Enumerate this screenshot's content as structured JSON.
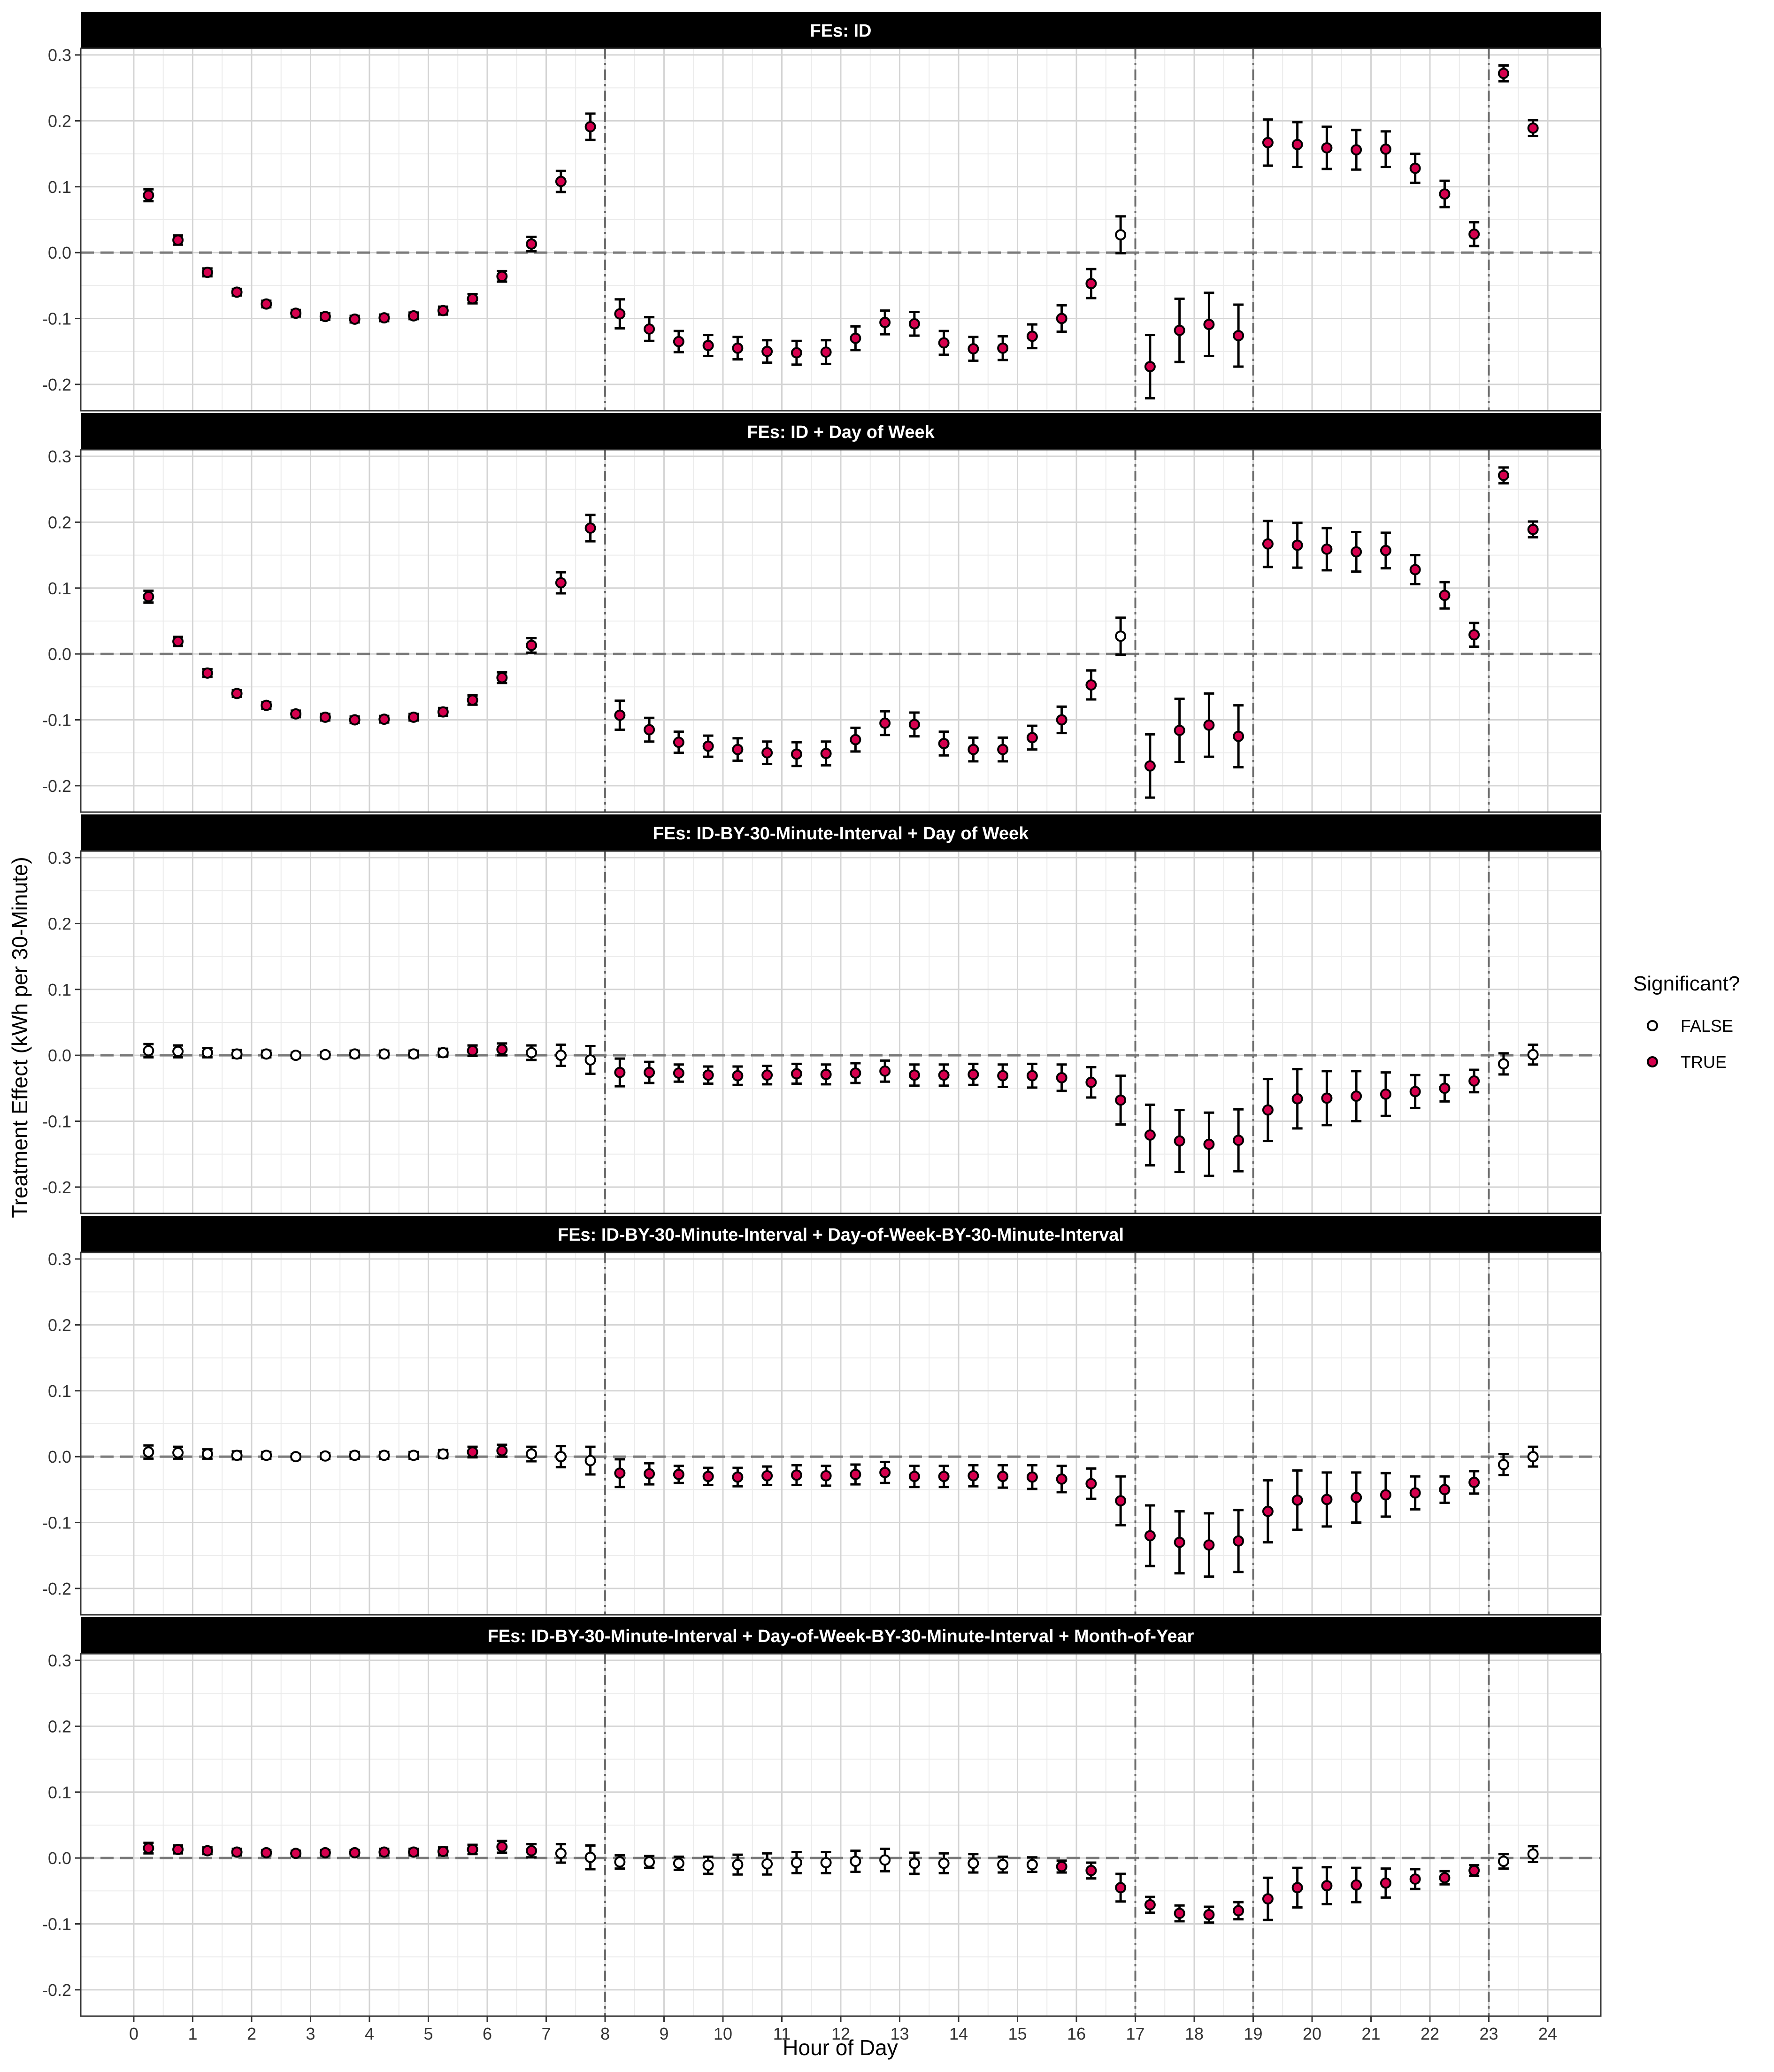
{
  "chart_data": {
    "type": "scatter",
    "ylabel": "Treatment Effect  (kWh per 30-Minute)",
    "xlabel": "Hour of Day",
    "xlim": [
      -0.9,
      24.9
    ],
    "ylim": [
      -0.24,
      0.31
    ],
    "x_ticks": [
      0,
      1,
      2,
      3,
      4,
      5,
      6,
      7,
      8,
      9,
      10,
      11,
      12,
      13,
      14,
      15,
      16,
      17,
      18,
      19,
      20,
      21,
      22,
      23,
      24
    ],
    "y_ticks": [
      -0.2,
      -0.1,
      0.0,
      0.1,
      0.2,
      0.3
    ],
    "y_tick_labels": [
      "-0.2",
      "-0.1",
      "0.0",
      "0.1",
      "0.2",
      "0.3"
    ],
    "grid": true,
    "vlines": [
      8,
      17,
      19,
      23
    ],
    "hline": 0,
    "legend": {
      "title": "Significant?",
      "placement": "right",
      "entries": [
        {
          "label": "FALSE",
          "fill": "#ffffff"
        },
        {
          "label": "TRUE",
          "fill": "#d6004e"
        }
      ]
    },
    "x": [
      0.25,
      0.75,
      1.25,
      1.75,
      2.25,
      2.75,
      3.25,
      3.75,
      4.25,
      4.75,
      5.25,
      5.75,
      6.25,
      6.75,
      7.25,
      7.75,
      8.25,
      8.75,
      9.25,
      9.75,
      10.25,
      10.75,
      11.25,
      11.75,
      12.25,
      12.75,
      13.25,
      13.75,
      14.25,
      14.75,
      15.25,
      15.75,
      16.25,
      16.75,
      17.25,
      17.75,
      18.25,
      18.75,
      19.25,
      19.75,
      20.25,
      20.75,
      21.25,
      21.75,
      22.25,
      22.75,
      23.25,
      23.75
    ],
    "panels": [
      {
        "title": "FEs: ID",
        "estimate": [
          0.087,
          0.019,
          -0.03,
          -0.06,
          -0.078,
          -0.092,
          -0.097,
          -0.101,
          -0.099,
          -0.096,
          -0.088,
          -0.07,
          -0.036,
          0.013,
          0.108,
          0.191,
          -0.093,
          -0.116,
          -0.135,
          -0.141,
          -0.145,
          -0.15,
          -0.152,
          -0.151,
          -0.13,
          -0.106,
          -0.108,
          -0.137,
          -0.146,
          -0.145,
          -0.127,
          -0.1,
          -0.047,
          0.027,
          -0.173,
          -0.118,
          -0.109,
          -0.126,
          0.167,
          0.164,
          0.159,
          0.156,
          0.157,
          0.128,
          0.089,
          0.028,
          0.272,
          0.189
        ],
        "error": [
          0.009,
          0.007,
          0.006,
          0.005,
          0.005,
          0.005,
          0.005,
          0.005,
          0.005,
          0.005,
          0.006,
          0.007,
          0.008,
          0.011,
          0.016,
          0.02,
          0.022,
          0.018,
          0.016,
          0.016,
          0.017,
          0.017,
          0.018,
          0.018,
          0.018,
          0.018,
          0.018,
          0.018,
          0.018,
          0.018,
          0.018,
          0.02,
          0.022,
          0.028,
          0.048,
          0.048,
          0.048,
          0.047,
          0.035,
          0.034,
          0.032,
          0.03,
          0.027,
          0.022,
          0.02,
          0.018,
          0.012,
          0.012
        ],
        "significant": [
          true,
          true,
          true,
          true,
          true,
          true,
          true,
          true,
          true,
          true,
          true,
          true,
          true,
          true,
          true,
          true,
          true,
          true,
          true,
          true,
          true,
          true,
          true,
          true,
          true,
          true,
          true,
          true,
          true,
          true,
          true,
          true,
          true,
          false,
          true,
          true,
          true,
          true,
          true,
          true,
          true,
          true,
          true,
          true,
          true,
          true,
          true,
          true
        ]
      },
      {
        "title": "FEs: ID + Day of Week",
        "estimate": [
          0.087,
          0.019,
          -0.029,
          -0.06,
          -0.078,
          -0.091,
          -0.096,
          -0.1,
          -0.099,
          -0.096,
          -0.088,
          -0.07,
          -0.036,
          0.013,
          0.108,
          0.191,
          -0.093,
          -0.115,
          -0.134,
          -0.14,
          -0.145,
          -0.15,
          -0.152,
          -0.151,
          -0.13,
          -0.105,
          -0.107,
          -0.136,
          -0.145,
          -0.145,
          -0.127,
          -0.1,
          -0.047,
          0.027,
          -0.17,
          -0.116,
          -0.108,
          -0.125,
          0.167,
          0.165,
          0.159,
          0.155,
          0.157,
          0.128,
          0.089,
          0.029,
          0.271,
          0.189
        ],
        "error": [
          0.009,
          0.007,
          0.006,
          0.005,
          0.005,
          0.005,
          0.005,
          0.005,
          0.005,
          0.005,
          0.006,
          0.007,
          0.008,
          0.011,
          0.016,
          0.02,
          0.022,
          0.018,
          0.016,
          0.016,
          0.017,
          0.017,
          0.018,
          0.018,
          0.018,
          0.018,
          0.018,
          0.018,
          0.018,
          0.018,
          0.018,
          0.02,
          0.022,
          0.028,
          0.048,
          0.048,
          0.048,
          0.047,
          0.035,
          0.034,
          0.032,
          0.03,
          0.027,
          0.022,
          0.02,
          0.018,
          0.012,
          0.012
        ],
        "significant": [
          true,
          true,
          true,
          true,
          true,
          true,
          true,
          true,
          true,
          true,
          true,
          true,
          true,
          true,
          true,
          true,
          true,
          true,
          true,
          true,
          true,
          true,
          true,
          true,
          true,
          true,
          true,
          true,
          true,
          true,
          true,
          true,
          true,
          false,
          true,
          true,
          true,
          true,
          true,
          true,
          true,
          true,
          true,
          true,
          true,
          true,
          true,
          true
        ]
      },
      {
        "title": "FEs: ID-BY-30-Minute-Interval + Day of Week",
        "estimate": [
          0.007,
          0.006,
          0.004,
          0.002,
          0.002,
          0.0,
          0.001,
          0.002,
          0.002,
          0.002,
          0.004,
          0.007,
          0.009,
          0.004,
          0.0,
          -0.007,
          -0.026,
          -0.026,
          -0.027,
          -0.03,
          -0.031,
          -0.03,
          -0.028,
          -0.029,
          -0.027,
          -0.024,
          -0.03,
          -0.03,
          -0.029,
          -0.031,
          -0.031,
          -0.034,
          -0.041,
          -0.068,
          -0.121,
          -0.13,
          -0.135,
          -0.129,
          -0.083,
          -0.066,
          -0.065,
          -0.062,
          -0.059,
          -0.055,
          -0.05,
          -0.039,
          -0.013,
          0.001
        ],
        "error": [
          0.01,
          0.009,
          0.007,
          0.006,
          0.005,
          0.004,
          0.004,
          0.005,
          0.005,
          0.005,
          0.006,
          0.008,
          0.009,
          0.011,
          0.016,
          0.021,
          0.021,
          0.016,
          0.013,
          0.013,
          0.014,
          0.014,
          0.015,
          0.015,
          0.015,
          0.016,
          0.016,
          0.016,
          0.016,
          0.017,
          0.018,
          0.02,
          0.023,
          0.037,
          0.046,
          0.047,
          0.048,
          0.047,
          0.047,
          0.045,
          0.041,
          0.038,
          0.033,
          0.025,
          0.02,
          0.017,
          0.016,
          0.015
        ],
        "significant": [
          false,
          false,
          false,
          false,
          false,
          false,
          false,
          false,
          false,
          false,
          false,
          true,
          true,
          false,
          false,
          false,
          true,
          true,
          true,
          true,
          true,
          true,
          true,
          true,
          true,
          true,
          true,
          true,
          true,
          true,
          true,
          true,
          true,
          true,
          true,
          true,
          true,
          true,
          true,
          true,
          true,
          true,
          true,
          true,
          true,
          true,
          false,
          false
        ]
      },
      {
        "title": "FEs: ID-BY-30-Minute-Interval + Day-of-Week-BY-30-Minute-Interval",
        "estimate": [
          0.007,
          0.006,
          0.004,
          0.002,
          0.002,
          0.0,
          0.001,
          0.002,
          0.002,
          0.002,
          0.004,
          0.007,
          0.009,
          0.004,
          0.0,
          -0.006,
          -0.025,
          -0.026,
          -0.027,
          -0.03,
          -0.031,
          -0.029,
          -0.028,
          -0.029,
          -0.027,
          -0.024,
          -0.03,
          -0.03,
          -0.029,
          -0.03,
          -0.031,
          -0.034,
          -0.041,
          -0.067,
          -0.12,
          -0.13,
          -0.134,
          -0.128,
          -0.083,
          -0.066,
          -0.065,
          -0.062,
          -0.058,
          -0.055,
          -0.05,
          -0.039,
          -0.012,
          0.0
        ],
        "error": [
          0.01,
          0.009,
          0.007,
          0.006,
          0.005,
          0.004,
          0.004,
          0.005,
          0.005,
          0.005,
          0.006,
          0.008,
          0.009,
          0.011,
          0.016,
          0.021,
          0.021,
          0.016,
          0.013,
          0.013,
          0.014,
          0.014,
          0.015,
          0.015,
          0.015,
          0.016,
          0.016,
          0.016,
          0.016,
          0.017,
          0.018,
          0.02,
          0.023,
          0.037,
          0.046,
          0.047,
          0.048,
          0.047,
          0.047,
          0.045,
          0.041,
          0.038,
          0.033,
          0.025,
          0.02,
          0.017,
          0.016,
          0.015
        ],
        "significant": [
          false,
          false,
          false,
          false,
          false,
          false,
          false,
          false,
          false,
          false,
          false,
          true,
          true,
          false,
          false,
          false,
          true,
          true,
          true,
          true,
          true,
          true,
          true,
          true,
          true,
          true,
          true,
          true,
          true,
          true,
          true,
          true,
          true,
          true,
          true,
          true,
          true,
          true,
          true,
          true,
          true,
          true,
          true,
          true,
          true,
          true,
          false,
          false
        ]
      },
      {
        "title": "FEs: ID-BY-30-Minute-Interval + Day-of-Week-BY-30-Minute-Interval + Month-of-Year",
        "estimate": [
          0.015,
          0.013,
          0.011,
          0.009,
          0.008,
          0.007,
          0.008,
          0.008,
          0.009,
          0.009,
          0.01,
          0.013,
          0.017,
          0.011,
          0.007,
          0.001,
          -0.006,
          -0.006,
          -0.008,
          -0.011,
          -0.01,
          -0.009,
          -0.007,
          -0.007,
          -0.005,
          -0.003,
          -0.008,
          -0.008,
          -0.008,
          -0.01,
          -0.01,
          -0.013,
          -0.019,
          -0.045,
          -0.071,
          -0.084,
          -0.086,
          -0.08,
          -0.062,
          -0.045,
          -0.042,
          -0.041,
          -0.038,
          -0.032,
          -0.03,
          -0.019,
          -0.005,
          0.006
        ],
        "error": [
          0.008,
          0.006,
          0.005,
          0.005,
          0.004,
          0.004,
          0.004,
          0.004,
          0.005,
          0.005,
          0.006,
          0.007,
          0.009,
          0.01,
          0.014,
          0.018,
          0.01,
          0.009,
          0.01,
          0.013,
          0.015,
          0.016,
          0.016,
          0.016,
          0.016,
          0.017,
          0.016,
          0.015,
          0.014,
          0.012,
          0.011,
          0.009,
          0.012,
          0.021,
          0.012,
          0.012,
          0.012,
          0.013,
          0.032,
          0.03,
          0.028,
          0.026,
          0.022,
          0.015,
          0.01,
          0.008,
          0.011,
          0.012
        ],
        "significant": [
          true,
          true,
          true,
          true,
          true,
          true,
          true,
          true,
          true,
          true,
          true,
          true,
          true,
          true,
          false,
          false,
          false,
          false,
          false,
          false,
          false,
          false,
          false,
          false,
          false,
          false,
          false,
          false,
          false,
          false,
          false,
          true,
          true,
          true,
          true,
          true,
          true,
          true,
          true,
          true,
          true,
          true,
          true,
          true,
          true,
          true,
          false,
          false
        ]
      }
    ]
  }
}
